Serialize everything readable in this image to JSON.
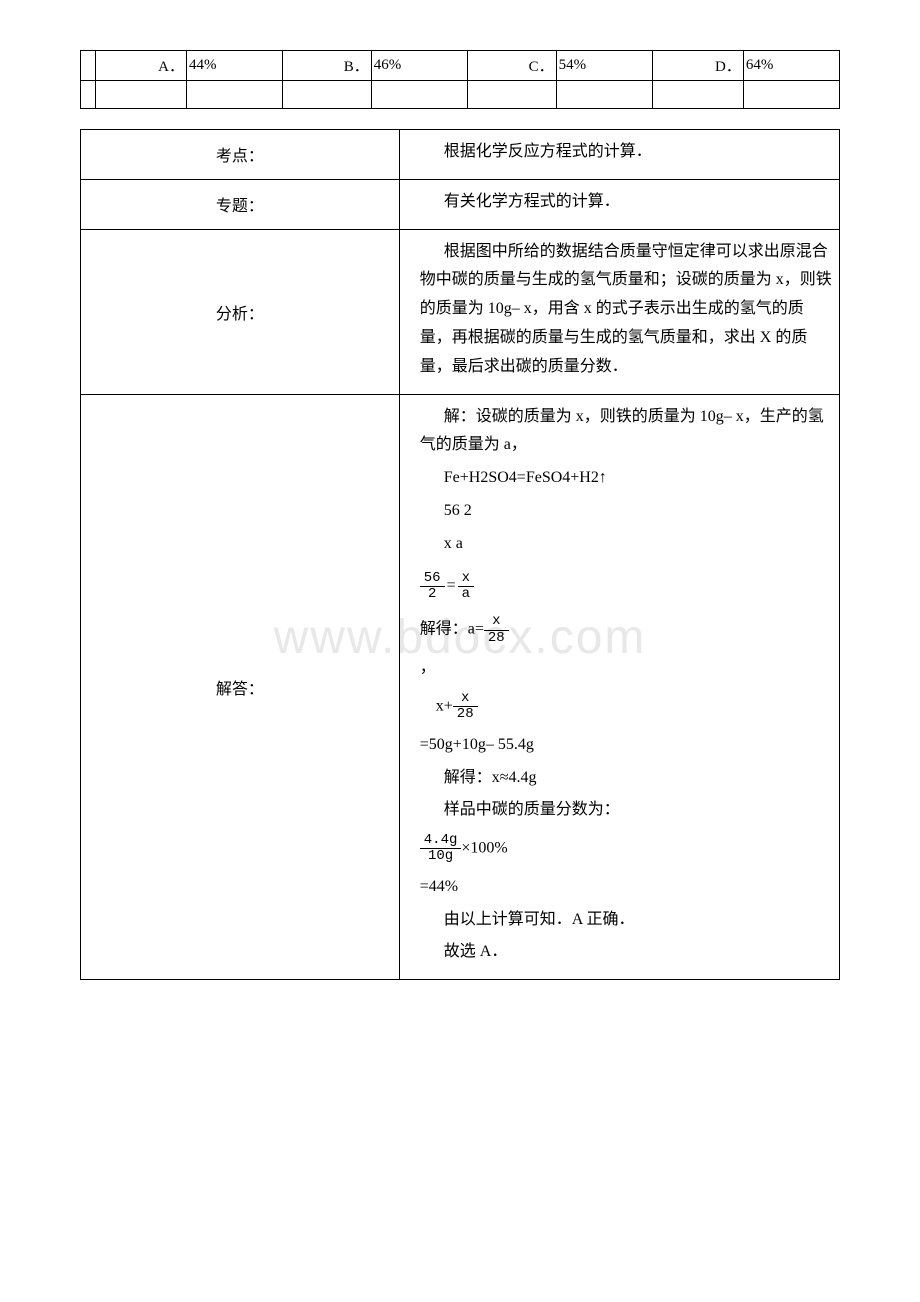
{
  "watermark": "www.bdocx.com",
  "options_table": {
    "cells": [
      {
        "label": "A．",
        "value": "44%"
      },
      {
        "label": "B．",
        "value": "46%"
      },
      {
        "label": "C．",
        "value": "54%"
      },
      {
        "label": "D．",
        "value": "64%"
      }
    ]
  },
  "analysis_table": {
    "rows": [
      {
        "label": "考点：",
        "content_type": "plain",
        "text": "根据化学反应方程式的计算．"
      },
      {
        "label": "专题：",
        "content_type": "plain",
        "text": "有关化学方程式的计算．"
      },
      {
        "label": "分析：",
        "content_type": "plain",
        "text": "根据图中所给的数据结合质量守恒定律可以求出原混合物中碳的质量与生成的氢气质量和；设碳的质量为 x，则铁的质量为 10g– x，用含 x 的式子表示出生成的氢气的质量，再根据碳的质量与生成的氢气质量和，求出 X 的质量，最后求出碳的质量分数．"
      },
      {
        "label": "解答：",
        "content_type": "solution"
      }
    ]
  },
  "solution": {
    "line1": "解：设碳的质量为 x，则铁的质量为 10g– x，生产的氢气的质量为 a，",
    "equation": "Fe+H2SO4=FeSO4+H2↑",
    "molar": "56 2",
    "vars": "x a",
    "frac1": {
      "num1": "56",
      "den1": "2",
      "num2": "x",
      "den2": "a"
    },
    "solve_a_prefix": "解得：a=",
    "frac_a": {
      "num": "x",
      "den": "28"
    },
    "comma": "，",
    "sum_prefix": "x+",
    "frac_sum": {
      "num": "x",
      "den": "28"
    },
    "eq1": "=50g+10g– 55.4g",
    "solve_x": "解得：x≈4.4g",
    "mass_fraction_label": "样品中碳的质量分数为：",
    "frac_mf": {
      "num": "4.4g",
      "den": "10g"
    },
    "mf_suffix": "×100%",
    "result": "=44%",
    "conclusion": "由以上计算可知．A 正确．",
    "answer": "故选 A．"
  }
}
